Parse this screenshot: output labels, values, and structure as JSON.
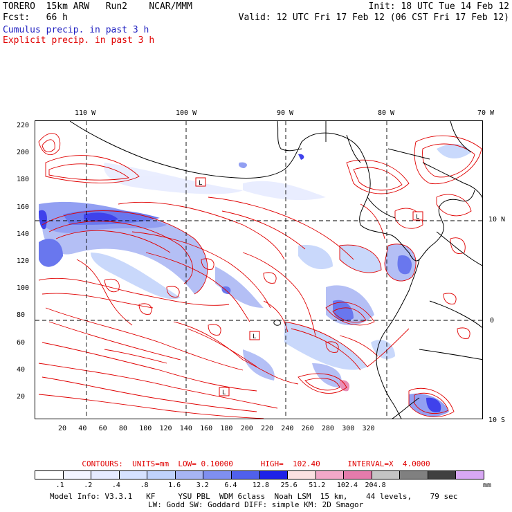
{
  "header": {
    "line1_left": "TORERO  15km ARW   Run2    NCAR/MMM",
    "line1_right": "Init: 18 UTC Tue 14 Feb 12",
    "line2_left": "Fcst:   66 h",
    "line2_right": "Valid: 12 UTC Fri 17 Feb 12 (06 CST Fri 17 Feb 12)",
    "line3": "Cumulus precip. in past 3 h",
    "line4": "Explicit precip. in past 3 h",
    "line3_color": "#2020c0",
    "line4_color": "#e00000"
  },
  "map": {
    "top_lon_labels": [
      "110 W",
      "100 W",
      "90 W",
      "80 W",
      "70 W"
    ],
    "right_lat_labels": [
      "10 N",
      "0",
      "10 S"
    ],
    "left_grid_labels": [
      "220",
      "200",
      "180",
      "160",
      "140",
      "120",
      "100",
      "80",
      "60",
      "40",
      "20"
    ],
    "bottom_grid_labels": [
      "20",
      "40",
      "60",
      "80",
      "100",
      "120",
      "140",
      "160",
      "180",
      "200",
      "220",
      "240",
      "260",
      "280",
      "300",
      "320"
    ],
    "contour_color": "#e00000",
    "coast_color": "#000000",
    "low_markers": [
      "L",
      "L",
      "L",
      "L"
    ]
  },
  "contours_info": {
    "label": "CONTOURS:  UNITS=mm  LOW= 0.10000      HIGH=  102.40      INTERVAL=X  4.0000"
  },
  "colorbar": {
    "colors": [
      "#ffffff",
      "#f3f5ff",
      "#e6ebff",
      "#d6e2ff",
      "#c0d2fb",
      "#a7b5f4",
      "#7f8ff0",
      "#5060ec",
      "#1e22e8",
      "#fbe1e1",
      "#f2a8c8",
      "#e47bab",
      "#c4c4c4",
      "#808080",
      "#404040",
      "#d8a8f4"
    ],
    "labels": [
      ".1",
      ".2",
      ".4",
      ".8",
      "1.6",
      "3.2",
      "6.4",
      "12.8",
      "25.6",
      "51.2",
      "102.4",
      "204.8"
    ],
    "units": "mm"
  },
  "footer": {
    "line1": "Model Info: V3.3.1   KF     YSU PBL  WDM 6class  Noah LSM  15 km,    44 levels,    79 sec",
    "line2": "LW: Godd SW: Goddard DIFF: simple KM: 2D Smagor"
  }
}
